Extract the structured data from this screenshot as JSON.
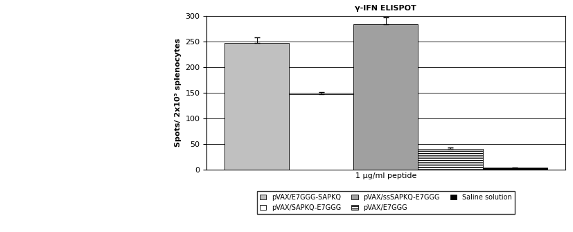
{
  "chart_data": {
    "type": "bar",
    "title": "γ-IFN ELISPOT",
    "y_label": "Spots/ 2x10⁵ splenocytes",
    "categories": [
      "1 µg/ml peptide"
    ],
    "series": [
      {
        "name": "pVAX/E7GGG-SAPKQ",
        "color": "#c0c0c0",
        "values": [
          248
        ],
        "errors": [
          10
        ]
      },
      {
        "name": "pVAX/SAPKQ-E7GGG",
        "color": "#ffffff",
        "values": [
          147
        ],
        "errors": [
          5
        ]
      },
      {
        "name": "pVAX/ssSAPKQ-E7GGG",
        "color": "#a0a0a0",
        "values": [
          285
        ],
        "errors": [
          13
        ]
      },
      {
        "name": "pVAX/E7GGG",
        "color": "#ffffff",
        "values": [
          40
        ],
        "errors": [
          3
        ]
      },
      {
        "name": "Saline solution",
        "color": "#000000",
        "values": [
          3
        ],
        "errors": [
          0
        ]
      }
    ],
    "ylim": [
      0,
      300
    ],
    "yticks": [
      0,
      50,
      100,
      150,
      200,
      250,
      300
    ],
    "grid": true,
    "legend": "lower center"
  }
}
